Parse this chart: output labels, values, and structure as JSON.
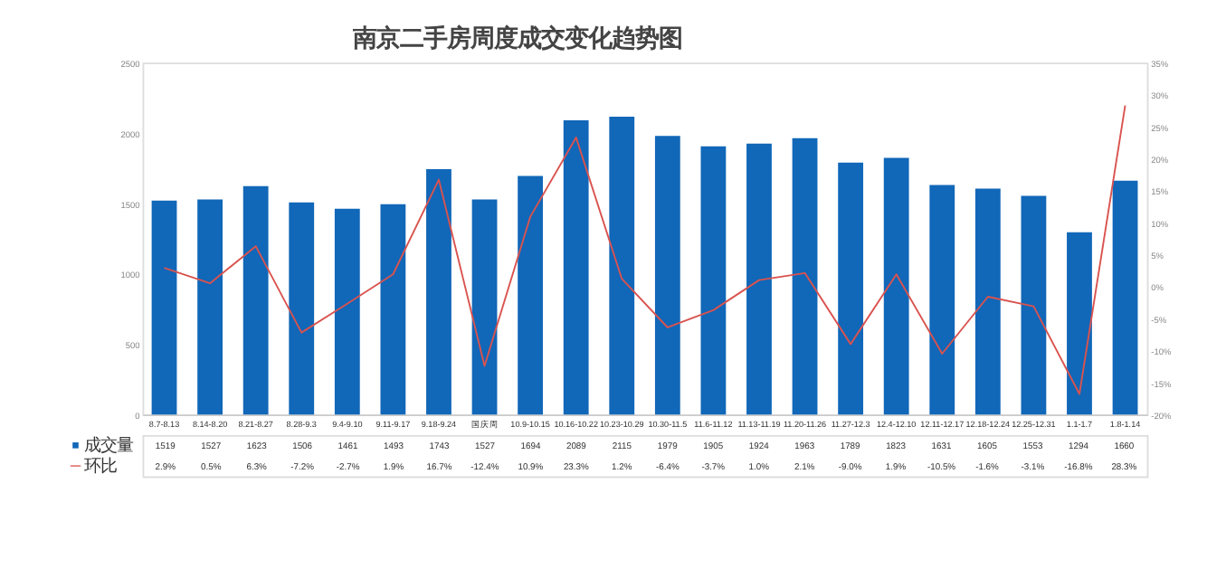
{
  "chart_data": {
    "type": "bar",
    "title": "南京二手房周度成交变化趋势图",
    "categories": [
      "8.7-8.13",
      "8.14-8.20",
      "8.21-8.27",
      "8.28-9.3",
      "9.4-9.10",
      "9.11-9.17",
      "9.18-9.24",
      "国庆周",
      "10.9-10.15",
      "10.16-10.22",
      "10.23-10.29",
      "10.30-11.5",
      "11.6-11.12",
      "11.13-11.19",
      "11.20-11.26",
      "11.27-12.3",
      "12.4-12.10",
      "12.11-12.17",
      "12.18-12.24",
      "12.25-12.31",
      "1.1-1.7",
      "1.8-1.14"
    ],
    "series": [
      {
        "name": "成交量",
        "color": "#1167b8",
        "values": [
          1519,
          1527,
          1623,
          1506,
          1461,
          1493,
          1743,
          1527,
          1694,
          2089,
          2115,
          1979,
          1905,
          1924,
          1963,
          1789,
          1823,
          1631,
          1605,
          1553,
          1294,
          1660
        ],
        "value_labels": [
          "1519",
          "1527",
          "1623",
          "1506",
          "1461",
          "1493",
          "1743",
          "1527",
          "1694",
          "2089",
          "2115",
          "1979",
          "1905",
          "1924",
          "1963",
          "1789",
          "1823",
          "1631",
          "1605",
          "1553",
          "1294",
          "1660"
        ]
      },
      {
        "name": "环比",
        "type": "line",
        "axis": "y2",
        "color": "#d9534f",
        "values": [
          2.9,
          0.5,
          6.3,
          -7.2,
          -2.7,
          1.9,
          16.7,
          -12.4,
          10.9,
          23.3,
          1.2,
          -6.4,
          -3.7,
          1.0,
          2.1,
          -9.0,
          1.9,
          -10.5,
          -1.6,
          -3.1,
          -16.8,
          28.3
        ],
        "value_labels": [
          "2.9%",
          "0.5%",
          "6.3%",
          "-7.2%",
          "-2.7%",
          "1.9%",
          "16.7%",
          "-12.4%",
          "10.9%",
          "23.3%",
          "1.2%",
          "-6.4%",
          "-3.7%",
          "1.0%",
          "2.1%",
          "-9.0%",
          "1.9%",
          "-10.5%",
          "-1.6%",
          "-3.1%",
          "-16.8%",
          "28.3%"
        ]
      }
    ],
    "ylim": [
      0,
      2500
    ],
    "yticks": [
      0,
      500,
      1000,
      1500,
      2000,
      2500
    ],
    "y2lim": [
      -20,
      35
    ],
    "y2ticks": [
      {
        "value": -20,
        "label": "-20%"
      },
      {
        "value": -15,
        "label": "-15%"
      },
      {
        "value": -10,
        "label": "-10%"
      },
      {
        "value": -5,
        "label": "-5%"
      },
      {
        "value": 0,
        "label": "0%"
      },
      {
        "value": 5,
        "label": "5%"
      },
      {
        "value": 10,
        "label": "10%"
      },
      {
        "value": 15,
        "label": "15%"
      },
      {
        "value": 20,
        "label": "20%"
      },
      {
        "value": 25,
        "label": "25%"
      },
      {
        "value": 30,
        "label": "30%"
      },
      {
        "value": 35,
        "label": "35%"
      }
    ],
    "grid": false,
    "legend": "bottom left"
  }
}
